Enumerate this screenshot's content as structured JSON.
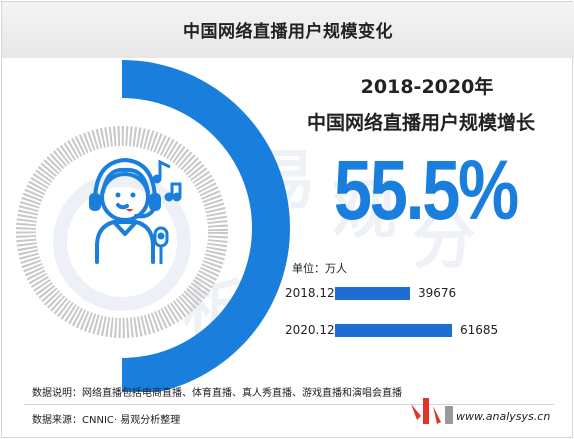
{
  "header": {
    "title": "中国网络直播用户规模变化"
  },
  "headline": {
    "period": "2018-2020年",
    "subtitle": "中国网络直播用户规模增长",
    "growth": "55.5%"
  },
  "chart_data": {
    "type": "bar",
    "orientation": "horizontal",
    "unit_label": "单位：万人",
    "categories": [
      "2018.12",
      "2020.12"
    ],
    "values": [
      39676,
      61685
    ],
    "xlim": [
      0,
      61685
    ]
  },
  "footer": {
    "note": "数据说明：网络直播包括电商直播、体育直播、真人秀直播、游戏直播和演唱会直播",
    "source": "数据来源：CNNIC· 易观分析整理",
    "site": "www.analysys.cn"
  },
  "icons": {
    "person": "headset-user-icon",
    "music": "music-note-icon",
    "microphone": "microphone-icon"
  },
  "colors": {
    "accent": "#1a7fdc",
    "bar": "#1c6fd1",
    "ring_gray": "#c8c8c8",
    "logo_red": "#e0352b"
  }
}
